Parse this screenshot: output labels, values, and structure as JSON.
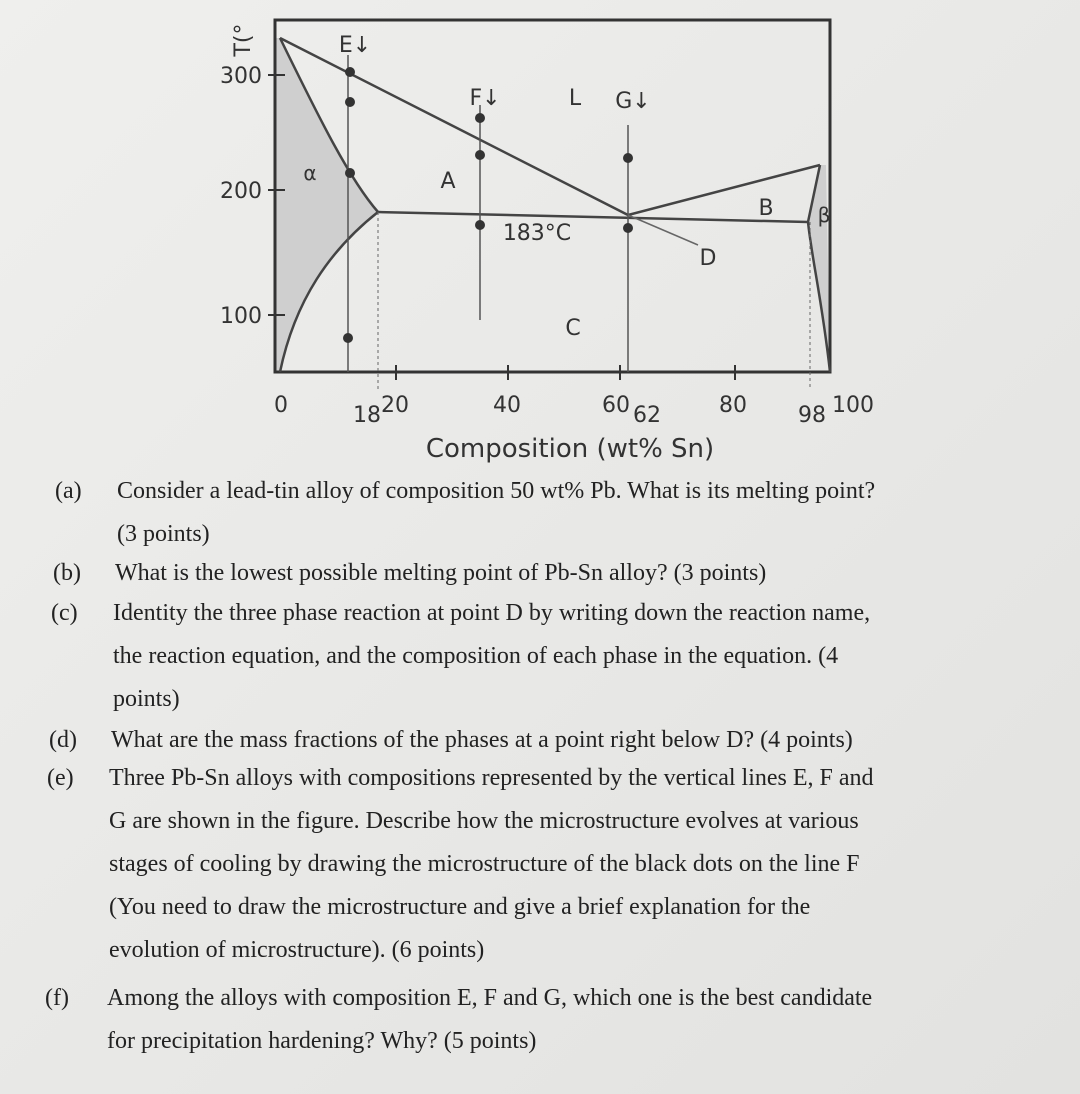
{
  "diagram": {
    "y_axis_label": "T(°",
    "y_ticks": [
      "300",
      "200",
      "100"
    ],
    "x_ticks": [
      "0",
      "18",
      "20",
      "40",
      "60",
      "62",
      "80",
      "98",
      "100"
    ],
    "x_axis_label": "Composition (wt% Sn)",
    "line_labels": [
      "E↓",
      "F↓",
      "G↓"
    ],
    "region_labels": [
      "α",
      "A",
      "L",
      "B",
      "β",
      "C",
      "D"
    ],
    "eutectic_label": "183°C"
  },
  "questions": [
    {
      "label": "(a)",
      "lines": [
        "Consider a lead-tin alloy of composition 50 wt% Pb. What is its melting point?",
        "(3 points)"
      ]
    },
    {
      "label": "(b)",
      "lines": [
        "What is the lowest possible melting point of Pb-Sn alloy? (3 points)"
      ]
    },
    {
      "label": "(c)",
      "lines": [
        "Identity the three phase reaction at point D by writing down the reaction name,",
        "the reaction equation, and the composition of each phase in the equation. (4",
        "points)"
      ]
    },
    {
      "label": "(d)",
      "lines": [
        "What are the mass fractions of the phases at a point right below D? (4 points)"
      ]
    },
    {
      "label": "(e)",
      "lines": [
        "Three Pb-Sn alloys with compositions represented by the vertical lines E, F and",
        "G are shown in the figure. Describe how the microstructure evolves at various",
        "stages of cooling by drawing the microstructure of the black dots on the line F",
        "(You need to draw the microstructure and give a brief explanation for the",
        "evolution of microstructure). (6 points)"
      ]
    },
    {
      "label": "(f)",
      "lines": [
        "Among the alloys with composition E, F and G, which one is the best candidate",
        "for precipitation hardening? Why? (5 points)"
      ]
    }
  ]
}
